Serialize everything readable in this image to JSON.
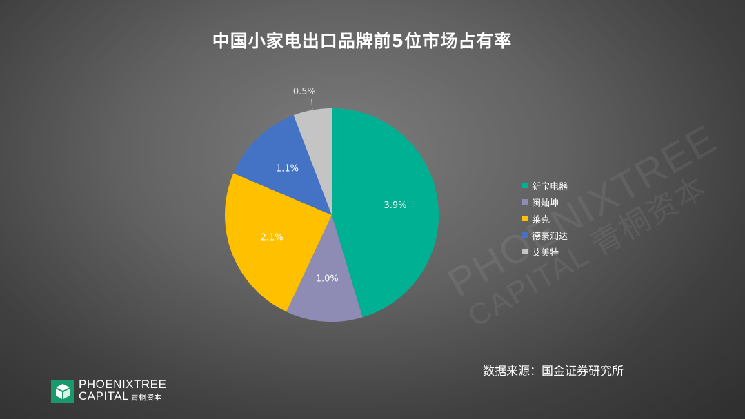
{
  "chart_data": {
    "type": "pie",
    "title": "中国小家电出口品牌前5位市场占有率",
    "slices": [
      {
        "name": "新宝电器",
        "value": 3.9,
        "label": "3.9%",
        "color": "#00b092"
      },
      {
        "name": "闽灿坤",
        "value": 1.0,
        "label": "1.0%",
        "color": "#8e8cb4"
      },
      {
        "name": "莱克",
        "value": 2.1,
        "label": "2.1%",
        "color": "#ffc000"
      },
      {
        "name": "德豪润达",
        "value": 1.1,
        "label": "1.1%",
        "color": "#4472c4"
      },
      {
        "name": "艾美特",
        "value": 0.5,
        "label": "0.5%",
        "color": "#c4c4c4"
      }
    ],
    "legend_position": "right"
  },
  "source": "数据来源：国金证券研究所",
  "watermark": {
    "line1": "PHOENIXTREE",
    "line2": "CAPITAL 青桐资本"
  },
  "logo": {
    "line1": "PHOENIXTREE",
    "line2": "CAPITAL",
    "cn": "青桐资本"
  }
}
